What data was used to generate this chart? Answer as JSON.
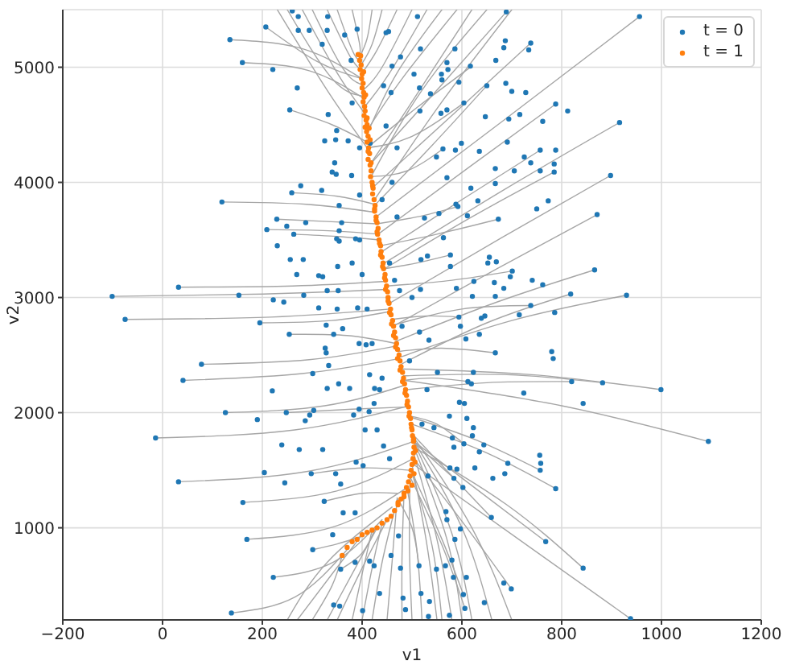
{
  "chart_data": {
    "type": "scatter",
    "xlabel": "v1",
    "ylabel": "v2",
    "xlim": [
      -200,
      1200
    ],
    "ylim": [
      200,
      5500
    ],
    "xticks": [
      {
        "value": -200,
        "label": "−200"
      },
      0,
      200,
      400,
      600,
      800,
      1000,
      1200
    ],
    "yticks": [
      1000,
      2000,
      3000,
      4000,
      5000
    ],
    "grid": true,
    "legend": "top right",
    "series": [
      {
        "type": "line",
        "color": "#a6a6a6",
        "x": [
          -101,
          202,
          450
        ],
        "values": [
          3010,
          3030,
          3070
        ]
      },
      {
        "type": "line",
        "color": "#a6a6a6",
        "x": [
          -75,
          217,
          456
        ],
        "values": [
          2810,
          2830,
          2900
        ]
      },
      {
        "type": "line",
        "color": "#a6a6a6",
        "x": [
          32,
          261,
          448
        ],
        "values": [
          3090,
          3100,
          3140
        ]
      },
      {
        "type": "line",
        "color": "#a6a6a6",
        "x": [
          119,
          288,
          427
        ],
        "values": [
          3830,
          3810,
          3740
        ]
      },
      {
        "type": "line",
        "color": "#a6a6a6",
        "x": [
          135,
          281,
          400
        ],
        "values": [
          5240,
          5160,
          4900
        ]
      },
      {
        "type": "line",
        "color": "#a6a6a6",
        "x": [
          160,
          294,
          403
        ],
        "values": [
          5040,
          4970,
          4730
        ]
      },
      {
        "type": "line",
        "color": "#a6a6a6",
        "x": [
          -14,
          265,
          494
        ],
        "values": [
          1780,
          1850,
          2060
        ]
      },
      {
        "type": "line",
        "color": "#a6a6a6",
        "x": [
          32,
          291,
          503
        ],
        "values": [
          1400,
          1490,
          1750
        ]
      },
      {
        "type": "line",
        "color": "#a6a6a6",
        "x": [
          41,
          280,
          475
        ],
        "values": [
          2280,
          2340,
          2470
        ]
      },
      {
        "type": "line",
        "color": "#a6a6a6",
        "x": [
          78,
          294,
          470
        ],
        "values": [
          2420,
          2460,
          2580
        ]
      },
      {
        "type": "line",
        "color": "#a6a6a6",
        "x": [
          161,
          349,
          502
        ],
        "values": [
          1220,
          1320,
          1600
        ]
      },
      {
        "type": "line",
        "color": "#a6a6a6",
        "x": [
          169,
          344,
          487
        ],
        "values": [
          900,
          1010,
          1340
        ]
      },
      {
        "type": "line",
        "color": "#a6a6a6",
        "x": [
          222,
          342,
          440
        ],
        "values": [
          570,
          700,
          1070
        ]
      },
      {
        "type": "line",
        "color": "#a6a6a6",
        "x": [
          138,
          266,
          370
        ],
        "values": [
          260,
          400,
          810
        ]
      },
      {
        "type": "line",
        "color": "#a6a6a6",
        "x": [
          126,
          325,
          487
        ],
        "values": [
          2000,
          2060,
          2240
        ]
      },
      {
        "type": "line",
        "color": "#a6a6a6",
        "x": [
          195,
          339,
          457
        ],
        "values": [
          2780,
          2800,
          2880
        ]
      },
      {
        "type": "line",
        "color": "#a6a6a6",
        "x": [
          259,
          350,
          425
        ],
        "values": [
          3910,
          3880,
          3810
        ]
      },
      {
        "type": "line",
        "color": "#a6a6a6",
        "x": [
          209,
          332,
          433
        ],
        "values": [
          3590,
          3580,
          3550
        ]
      },
      {
        "type": "line",
        "color": "#a6a6a6",
        "x": [
          956,
          690,
          428
        ],
        "values": [
          5440,
          4560,
          3700
        ]
      },
      {
        "type": "line",
        "color": "#a6a6a6",
        "x": [
          916,
          690,
          445
        ],
        "values": [
          4520,
          3950,
          3300
        ]
      },
      {
        "type": "line",
        "color": "#a6a6a6",
        "x": [
          898,
          680,
          455
        ],
        "values": [
          4060,
          3520,
          2950
        ]
      },
      {
        "type": "line",
        "color": "#a6a6a6",
        "x": [
          871,
          670,
          462
        ],
        "values": [
          3720,
          3250,
          2750
        ]
      },
      {
        "type": "line",
        "color": "#a6a6a6",
        "x": [
          866,
          670,
          468
        ],
        "values": [
          3240,
          2960,
          2620
        ]
      },
      {
        "type": "line",
        "color": "#a6a6a6",
        "x": [
          930,
          700,
          475
        ],
        "values": [
          3020,
          2800,
          2480
        ]
      },
      {
        "type": "line",
        "color": "#a6a6a6",
        "x": [
          818,
          650,
          478
        ],
        "values": [
          3030,
          2780,
          2420
        ]
      },
      {
        "type": "line",
        "color": "#a6a6a6",
        "x": [
          1094,
          800,
          485
        ],
        "values": [
          1750,
          2060,
          2280
        ]
      },
      {
        "type": "line",
        "color": "#a6a6a6",
        "x": [
          999,
          740,
          480
        ],
        "values": [
          2200,
          2330,
          2380
        ]
      },
      {
        "type": "line",
        "color": "#a6a6a6",
        "x": [
          882,
          690,
          483
        ],
        "values": [
          2260,
          2330,
          2320
        ]
      },
      {
        "type": "line",
        "color": "#a6a6a6",
        "x": [
          843,
          690,
          503
        ],
        "values": [
          650,
          1200,
          1700
        ]
      },
      {
        "type": "line",
        "color": "#a6a6a6",
        "x": [
          938,
          740,
          500
        ],
        "values": [
          210,
          820,
          1560
        ]
      },
      {
        "type": "line",
        "color": "#a6a6a6",
        "x": [
          768,
          640,
          504
        ],
        "values": [
          880,
          1300,
          1750
        ]
      },
      {
        "type": "line",
        "color": "#a6a6a6",
        "x": [
          788,
          650,
          500
        ],
        "values": [
          1340,
          1650,
          1900
        ]
      },
      {
        "type": "line",
        "color": "#a6a6a6",
        "x": [
          757,
          630,
          498
        ],
        "values": [
          1500,
          1760,
          1960
        ]
      },
      {
        "type": "line",
        "color": "#a6a6a6",
        "x": [
          659,
          580,
          504
        ],
        "values": [
          1090,
          1450,
          1800
        ]
      },
      {
        "type": "line",
        "color": "#a6a6a6",
        "x": [
          699,
          610,
          500
        ],
        "values": [
          470,
          1000,
          1620
        ]
      },
      {
        "type": "line",
        "color": "#a6a6a6",
        "x": [
          606,
          560,
          495
        ],
        "values": [
          300,
          850,
          1450
        ]
      },
      {
        "type": "line",
        "color": "#a6a6a6",
        "x": [
          820,
          650,
          490
        ],
        "values": [
          2270,
          2260,
          2200
        ]
      },
      {
        "type": "line",
        "color": "#a6a6a6",
        "x": [
          788,
          620,
          432
        ],
        "values": [
          4680,
          4150,
          3550
        ]
      },
      {
        "type": "line",
        "color": "#a6a6a6",
        "x": [
          738,
          590,
          420
        ],
        "values": [
          5210,
          4620,
          3950
        ]
      },
      {
        "type": "line",
        "color": "#a6a6a6",
        "x": [
          689,
          560,
          415
        ],
        "values": [
          5480,
          4850,
          4150
        ]
      },
      {
        "type": "line",
        "color": "#a6a6a6",
        "x": [
          650,
          540,
          425
        ],
        "values": [
          4840,
          4320,
          3800
        ]
      },
      {
        "type": "line",
        "color": "#a6a6a6",
        "x": [
          757,
          600,
          440
        ],
        "values": [
          4280,
          3850,
          3400
        ]
      },
      {
        "type": "line",
        "color": "#a6a6a6",
        "x": [
          785,
          620,
          445
        ],
        "values": [
          4090,
          3700,
          3250
        ]
      },
      {
        "type": "line",
        "color": "#a6a6a6",
        "x": [
          620,
          510,
          410
        ],
        "values": [
          5010,
          4650,
          4300
        ]
      },
      {
        "type": "line",
        "color": "#a6a6a6",
        "x": [
          300,
          360,
          398
        ],
        "values": [
          5500,
          5000,
          4850
        ]
      },
      {
        "type": "line",
        "color": "#a6a6a6",
        "x": [
          380,
          395,
          395
        ],
        "values": [
          5500,
          5200,
          5110
        ]
      },
      {
        "type": "line",
        "color": "#a6a6a6",
        "x": [
          470,
          430,
          400
        ],
        "values": [
          5500,
          5150,
          4950
        ]
      },
      {
        "type": "line",
        "color": "#a6a6a6",
        "x": [
          560,
          470,
          408
        ],
        "values": [
          5500,
          4950,
          4400
        ]
      },
      {
        "type": "line",
        "color": "#a6a6a6",
        "x": [
          230,
          330,
          410
        ],
        "values": [
          5500,
          4800,
          4300
        ]
      },
      {
        "type": "line",
        "color": "#a6a6a6",
        "x": [
          620,
          500,
          415
        ],
        "values": [
          5500,
          4700,
          4150
        ]
      },
      {
        "type": "line",
        "color": "#a6a6a6",
        "x": [
          250,
          340,
          402
        ],
        "values": [
          5500,
          4900,
          4750
        ]
      },
      {
        "type": "line",
        "color": "#a6a6a6",
        "x": [
          330,
          375,
          397
        ],
        "values": [
          5500,
          5100,
          4980
        ]
      },
      {
        "type": "line",
        "color": "#a6a6a6",
        "x": [
          350,
          380,
          395
        ],
        "values": [
          5500,
          5150,
          5060
        ]
      },
      {
        "type": "line",
        "color": "#a6a6a6",
        "x": [
          420,
          410,
          396
        ],
        "values": [
          5500,
          5250,
          5100
        ]
      },
      {
        "type": "line",
        "color": "#a6a6a6",
        "x": [
          500,
          440,
          402
        ],
        "values": [
          5500,
          5000,
          4800
        ]
      },
      {
        "type": "line",
        "color": "#a6a6a6",
        "x": [
          530,
          455,
          404
        ],
        "values": [
          5500,
          4950,
          4650
        ]
      },
      {
        "type": "line",
        "color": "#a6a6a6",
        "x": [
          590,
          480,
          410
        ],
        "values": [
          5500,
          4900,
          4450
        ]
      },
      {
        "type": "line",
        "color": "#a6a6a6",
        "x": [
          650,
          520,
          418
        ],
        "values": [
          5500,
          4800,
          4050
        ]
      },
      {
        "type": "line",
        "color": "#a6a6a6",
        "x": [
          700,
          560,
          425
        ],
        "values": [
          5500,
          4700,
          3850
        ]
      },
      {
        "type": "line",
        "color": "#a6a6a6",
        "x": [
          280,
          350,
          405
        ],
        "values": [
          5500,
          4950,
          4600
        ]
      },
      {
        "type": "line",
        "color": "#a6a6a6",
        "x": [
          440,
          420,
          398
        ],
        "values": [
          5500,
          5200,
          5020
        ]
      },
      {
        "type": "line",
        "color": "#a6a6a6",
        "x": [
          300,
          340,
          360
        ],
        "values": [
          200,
          500,
          760
        ]
      },
      {
        "type": "line",
        "color": "#a6a6a6",
        "x": [
          380,
          400,
          420
        ],
        "values": [
          200,
          600,
          980
        ]
      },
      {
        "type": "line",
        "color": "#a6a6a6",
        "x": [
          450,
          460,
          470
        ],
        "values": [
          200,
          700,
          1250
        ]
      },
      {
        "type": "line",
        "color": "#a6a6a6",
        "x": [
          520,
          510,
          490
        ],
        "values": [
          200,
          800,
          1350
        ]
      },
      {
        "type": "line",
        "color": "#a6a6a6",
        "x": [
          580,
          550,
          503
        ],
        "values": [
          200,
          900,
          1650
        ]
      },
      {
        "type": "line",
        "color": "#a6a6a6",
        "x": [
          660,
          600,
          504
        ],
        "values": [
          200,
          1000,
          1750
        ]
      },
      {
        "type": "line",
        "color": "#a6a6a6",
        "x": [
          250,
          330,
          460
        ],
        "values": [
          200,
          700,
          1180
        ]
      },
      {
        "type": "line",
        "color": "#a6a6a6",
        "x": [
          270,
          340,
          400
        ],
        "values": [
          200,
          600,
          940
        ]
      },
      {
        "type": "line",
        "color": "#a6a6a6",
        "x": [
          330,
          380,
          430
        ],
        "values": [
          200,
          600,
          1000
        ]
      },
      {
        "type": "line",
        "color": "#a6a6a6",
        "x": [
          350,
          400,
          450
        ],
        "values": [
          200,
          650,
          1070
        ]
      },
      {
        "type": "line",
        "color": "#a6a6a6",
        "x": [
          420,
          440,
          465
        ],
        "values": [
          200,
          700,
          1150
        ]
      },
      {
        "type": "line",
        "color": "#a6a6a6",
        "x": [
          480,
          480,
          484
        ],
        "values": [
          200,
          750,
          1300
        ]
      },
      {
        "type": "line",
        "color": "#a6a6a6",
        "x": [
          500,
          495,
          496
        ],
        "values": [
          200,
          800,
          1450
        ]
      },
      {
        "type": "line",
        "color": "#a6a6a6",
        "x": [
          550,
          530,
          500
        ],
        "values": [
          200,
          850,
          1550
        ]
      },
      {
        "type": "line",
        "color": "#a6a6a6",
        "x": [
          600,
          570,
          504
        ],
        "values": [
          200,
          900,
          1700
        ]
      },
      {
        "type": "line",
        "color": "#a6a6a6",
        "x": [
          620,
          580,
          503
        ],
        "values": [
          200,
          950,
          1750
        ]
      },
      {
        "type": "line",
        "color": "#a6a6a6",
        "x": [
          700,
          620,
          501
        ],
        "values": [
          200,
          1000,
          1800
        ]
      },
      {
        "type": "line",
        "color": "#a6a6a6",
        "x": [
          400,
          420,
          440
        ],
        "values": [
          200,
          650,
          1040
        ]
      },
      {
        "type": "line",
        "color": "#a6a6a6",
        "x": [
          560,
          540,
          498
        ],
        "values": [
          200,
          850,
          1500
        ]
      },
      {
        "type": "line",
        "color": "#a6a6a6",
        "x": [
          301,
          350,
          395
        ],
        "values": [
          810,
          860,
          920
        ]
      },
      {
        "type": "line",
        "color": "#a6a6a6",
        "x": [
          357,
          400,
          427
        ],
        "values": [
          640,
          780,
          1000
        ]
      },
      {
        "type": "line",
        "color": "#a6a6a6",
        "x": [
          514,
          500,
          470
        ],
        "values": [
          670,
          1000,
          1260
        ]
      },
      {
        "type": "line",
        "color": "#a6a6a6",
        "x": [
          603,
          560,
          498
        ],
        "values": [
          420,
          900,
          1500
        ]
      },
      {
        "type": "line",
        "color": "#a6a6a6",
        "x": [
          584,
          540,
          502
        ],
        "values": [
          1430,
          1600,
          1750
        ]
      },
      {
        "type": "line",
        "color": "#a6a6a6",
        "x": [
          604,
          550,
          497
        ],
        "values": [
          1730,
          1900,
          1970
        ]
      },
      {
        "type": "line",
        "color": "#a6a6a6",
        "x": [
          612,
          540,
          484
        ],
        "values": [
          2270,
          2300,
          2280
        ]
      },
      {
        "type": "line",
        "color": "#a6a6a6",
        "x": [
          667,
          560,
          472
        ],
        "values": [
          2520,
          2560,
          2530
        ]
      },
      {
        "type": "line",
        "color": "#a6a6a6",
        "x": [
          739,
          600,
          462
        ],
        "values": [
          2930,
          2900,
          2760
        ]
      },
      {
        "type": "line",
        "color": "#a6a6a6",
        "x": [
          594,
          530,
          459
        ],
        "values": [
          2830,
          2840,
          2810
        ]
      },
      {
        "type": "line",
        "color": "#a6a6a6",
        "x": [
          604,
          500,
          410
        ],
        "values": [
          4690,
          4400,
          4300
        ]
      },
      {
        "type": "line",
        "color": "#a6a6a6",
        "x": [
          673,
          550,
          437
        ],
        "values": [
          3680,
          3550,
          3450
        ]
      },
      {
        "type": "line",
        "color": "#a6a6a6",
        "x": [
          592,
          510,
          430
        ],
        "values": [
          3790,
          3700,
          3640
        ]
      },
      {
        "type": "line",
        "color": "#a6a6a6",
        "x": [
          701,
          580,
          450
        ],
        "values": [
          3230,
          3150,
          3100
        ]
      },
      {
        "type": "line",
        "color": "#a6a6a6",
        "x": [
          324,
          400,
          470
        ],
        "values": [
          1230,
          1300,
          1300
        ]
      },
      {
        "type": "line",
        "color": "#a6a6a6",
        "x": [
          298,
          400,
          495
        ],
        "values": [
          1470,
          1520,
          1500
        ]
      },
      {
        "type": "line",
        "color": "#a6a6a6",
        "x": [
          248,
          380,
          494
        ],
        "values": [
          2000,
          2030,
          2050
        ]
      },
      {
        "type": "line",
        "color": "#a6a6a6",
        "x": [
          254,
          370,
          468
        ],
        "values": [
          2680,
          2670,
          2600
        ]
      },
      {
        "type": "line",
        "color": "#a6a6a6",
        "x": [
          263,
          350,
          435
        ],
        "values": [
          3550,
          3530,
          3500
        ]
      },
      {
        "type": "line",
        "color": "#a6a6a6",
        "x": [
          229,
          330,
          430
        ],
        "values": [
          3680,
          3660,
          3640
        ]
      },
      {
        "type": "line",
        "color": "#a6a6a6",
        "x": [
          255,
          340,
          410
        ],
        "values": [
          4630,
          4500,
          4350
        ]
      },
      {
        "type": "line",
        "color": "#a6a6a6",
        "x": [
          207,
          310,
          400
        ],
        "values": [
          5350,
          5050,
          4900
        ]
      },
      {
        "type": "line",
        "color": "#a6a6a6",
        "x": [
          577,
          510,
          445
        ],
        "values": [
          3370,
          3300,
          3250
        ]
      },
      {
        "type": "line",
        "color": "#a6a6a6",
        "x": [
          562,
          490,
          418
        ],
        "values": [
          4290,
          4100,
          4050
        ]
      },
      {
        "name": "t = 0",
        "color": "#1f77b4",
        "marker": "circle",
        "x": [
          260,
          272,
          331,
          207,
          272,
          294,
          330,
          365,
          390,
          320,
          135,
          160,
          221,
          270,
          255,
          332,
          380,
          378,
          325,
          349,
          347,
          372,
          395,
          345,
          340,
          348,
          379,
          319,
          277,
          259,
          119,
          395,
          354,
          229,
          209,
          249,
          287,
          359,
          354,
          230,
          263,
          349,
          387,
          354,
          256,
          282,
          269,
          313,
          321,
          351,
          330,
          352,
          313,
          283,
          222,
          243,
          153,
          32,
          -101,
          391,
          956,
          689,
          511,
          453,
          477,
          460,
          517,
          586,
          570,
          572,
          617,
          668,
          687,
          684,
          738,
          734,
          504,
          559,
          560,
          594,
          650,
          688,
          700,
          728,
          515,
          537,
          604,
          570,
          558,
          458,
          516,
          647,
          694,
          716,
          762,
          788,
          812,
          916,
          691,
          599,
          562,
          587,
          635,
          757,
          788,
          725,
          738,
          785,
          785,
          705,
          757,
          667,
          570,
          549,
          667,
          618,
          898,
          773,
          750,
          588,
          592,
          632,
          611,
          673,
          871,
          554,
          525,
          563,
          531,
          518,
          577,
          577,
          655,
          652,
          669,
          701,
          697,
          741,
          866,
          624,
          665,
          589,
          684,
          762,
          818,
          930,
          475,
          517,
          667,
          621,
          -75,
          195,
          254,
          78,
          41,
          328,
          361,
          326,
          343,
          328,
          301,
          333,
          353,
          330,
          220,
          126,
          190,
          248,
          286,
          303,
          295,
          -14,
          239,
          274,
          321,
          32,
          204,
          245,
          298,
          161,
          169,
          222,
          138,
          324,
          347,
          357,
          301,
          341,
          357,
          343,
          355,
          362,
          386,
          386,
          401,
          415,
          424,
          435,
          375,
          394,
          406,
          388,
          402,
          383,
          443,
          394,
          408,
          415,
          425,
          414,
          424,
          435,
          458,
          473,
          738,
          786,
          715,
          646,
          639,
          594,
          597,
          635,
          608,
          534,
          667,
          780,
          783,
          623,
          551,
          612,
          619,
          820,
          882,
          999,
          724,
          843,
          595,
          605,
          1094,
          575,
          610,
          544,
          623,
          621,
          581,
          604,
          584,
          635,
          644,
          692,
          756,
          758,
          757,
          788,
          686,
          662,
          626,
          576,
          590,
          584,
          602,
          532,
          659,
          768,
          843,
          568,
          570,
          586,
          597,
          580,
          567,
          514,
          549,
          583,
          609,
          684,
          699,
          477,
          518,
          603,
          606,
          645,
          535,
          482,
          487,
          575,
          533,
          938,
          448,
          443,
          448,
          416,
          460,
          470,
          455,
          395,
          400,
          465,
          410,
          480,
          420,
          495,
          440,
          430,
          455,
          520,
          530,
          515,
          500,
          470,
          440,
          380,
          350
        ],
        "values": [
          5490,
          5440,
          5440,
          5350,
          5320,
          5320,
          5320,
          5280,
          5330,
          5200,
          5240,
          5040,
          4980,
          4820,
          4630,
          4590,
          4690,
          5060,
          4360,
          4450,
          4370,
          4360,
          4300,
          4170,
          4090,
          4070,
          4060,
          3930,
          3970,
          3910,
          3830,
          3890,
          3800,
          3680,
          3590,
          3620,
          3650,
          3650,
          3580,
          3450,
          3550,
          3510,
          3510,
          3490,
          3330,
          3330,
          3200,
          3190,
          3180,
          3270,
          3060,
          3060,
          2910,
          3020,
          2980,
          2960,
          3020,
          3090,
          3010,
          2910,
          5440,
          5480,
          5440,
          5310,
          5090,
          5010,
          5160,
          5160,
          5040,
          4980,
          5010,
          5060,
          5230,
          5170,
          5210,
          5150,
          4940,
          4940,
          4890,
          4870,
          4840,
          4860,
          4790,
          4780,
          4820,
          4770,
          4690,
          4630,
          4600,
          4780,
          4620,
          4570,
          4550,
          4590,
          4530,
          4680,
          4620,
          4520,
          4350,
          4340,
          4290,
          4280,
          4270,
          4280,
          4280,
          4220,
          4170,
          4160,
          4090,
          4100,
          4100,
          4120,
          4040,
          4220,
          3990,
          3950,
          4060,
          3840,
          3770,
          3810,
          3790,
          3840,
          3710,
          3680,
          3720,
          3730,
          3690,
          3520,
          3360,
          3330,
          3370,
          3270,
          3350,
          3300,
          3310,
          3230,
          3180,
          3150,
          3240,
          3140,
          3130,
          3080,
          3080,
          3110,
          3030,
          3020,
          3060,
          3070,
          3010,
          3010,
          2810,
          2780,
          2680,
          2420,
          2280,
          2760,
          2730,
          2560,
          2680,
          2520,
          2340,
          2410,
          2250,
          2210,
          2190,
          2000,
          1940,
          2000,
          1930,
          2020,
          1980,
          1780,
          1720,
          1680,
          1680,
          1400,
          1480,
          1390,
          1470,
          1220,
          900,
          570,
          260,
          1230,
          1470,
          1380,
          810,
          940,
          640,
          330,
          320,
          1130,
          1130,
          700,
          280,
          710,
          670,
          430,
          2210,
          2030,
          1850,
          1570,
          1540,
          1980,
          1710,
          2600,
          2590,
          2330,
          2210,
          2010,
          2080,
          2200,
          760,
          930,
          2930,
          2870,
          2850,
          2840,
          2820,
          2830,
          2750,
          2680,
          2640,
          2630,
          2520,
          2530,
          2470,
          2350,
          2350,
          2270,
          2250,
          2270,
          2260,
          2200,
          2170,
          2080,
          2090,
          2080,
          1750,
          1970,
          1950,
          1870,
          1870,
          1800,
          1780,
          1730,
          1700,
          1660,
          1720,
          1560,
          1630,
          1560,
          1500,
          1340,
          1470,
          1430,
          1520,
          1520,
          1510,
          1430,
          1350,
          1450,
          1090,
          880,
          650,
          1140,
          1070,
          900,
          990,
          720,
          670,
          670,
          640,
          570,
          570,
          520,
          470,
          650,
          430,
          420,
          300,
          350,
          360,
          390,
          290,
          240,
          230,
          210,
          5300,
          4840,
          4490,
          4340,
          4000,
          3700,
          3300,
          3500,
          3200,
          3150,
          2900,
          2750,
          2600,
          2450,
          2300,
          1850,
          1600,
          1900,
          2200,
          2700,
          3000,
          4300,
          3850,
          3300,
          2900
        ]
      },
      {
        "name": "t = 1",
        "color": "#ff7f0e",
        "marker": "circle",
        "x": [
          392,
          397,
          395,
          398,
          396,
          400,
          399,
          402,
          400,
          403,
          404,
          402,
          405,
          406,
          404,
          408,
          410,
          406,
          409,
          412,
          410,
          413,
          415,
          412,
          416,
          418,
          417,
          420,
          422,
          421,
          424,
          426,
          425,
          428,
          430,
          432,
          431,
          434,
          437,
          438,
          440,
          442,
          443,
          446,
          447,
          449,
          451,
          452,
          454,
          457,
          458,
          461,
          463,
          465,
          467,
          469,
          471,
          474,
          476,
          478,
          481,
          483,
          485,
          487,
          489,
          491,
          493,
          495,
          497,
          498,
          500,
          501,
          503,
          504,
          503,
          502,
          500,
          498,
          496,
          493,
          489,
          484,
          478,
          472,
          465,
          458,
          450,
          440,
          430,
          420,
          410,
          400,
          390,
          380,
          370,
          360,
          403,
          407,
          410,
          414,
          416,
          412,
          418,
          421,
          425,
          428,
          430,
          435,
          437,
          441,
          445,
          447,
          452,
          455,
          459,
          463,
          467,
          471,
          476,
          481,
          486,
          490,
          494,
          499,
          503,
          507,
          506,
          504,
          500,
          492,
          484,
          472
        ],
        "values": [
          5110,
          5100,
          5060,
          5020,
          4980,
          4940,
          4900,
          4860,
          4820,
          4780,
          4740,
          4700,
          4660,
          4620,
          4580,
          4540,
          4500,
          4480,
          4440,
          4400,
          4350,
          4300,
          4250,
          4200,
          4150,
          4100,
          4050,
          4000,
          3950,
          3900,
          3850,
          3800,
          3750,
          3700,
          3650,
          3600,
          3550,
          3500,
          3450,
          3400,
          3350,
          3300,
          3250,
          3200,
          3150,
          3100,
          3050,
          3000,
          2950,
          2900,
          2850,
          2800,
          2750,
          2700,
          2650,
          2600,
          2550,
          2500,
          2450,
          2400,
          2350,
          2300,
          2250,
          2200,
          2150,
          2100,
          2050,
          2000,
          1950,
          1900,
          1850,
          1800,
          1750,
          1700,
          1650,
          1600,
          1550,
          1500,
          1450,
          1400,
          1350,
          1300,
          1250,
          1200,
          1150,
          1100,
          1070,
          1040,
          1000,
          980,
          960,
          940,
          900,
          880,
          830,
          760,
          4960,
          4760,
          4560,
          4470,
          4370,
          4270,
          4170,
          3970,
          3770,
          3670,
          3570,
          3470,
          3370,
          3270,
          3170,
          3070,
          2970,
          2870,
          2770,
          2670,
          2570,
          2470,
          2370,
          2270,
          2170,
          2070,
          1970,
          1870,
          1770,
          1670,
          1570,
          1470,
          1370,
          1320,
          1270,
          1220
        ]
      }
    ]
  }
}
